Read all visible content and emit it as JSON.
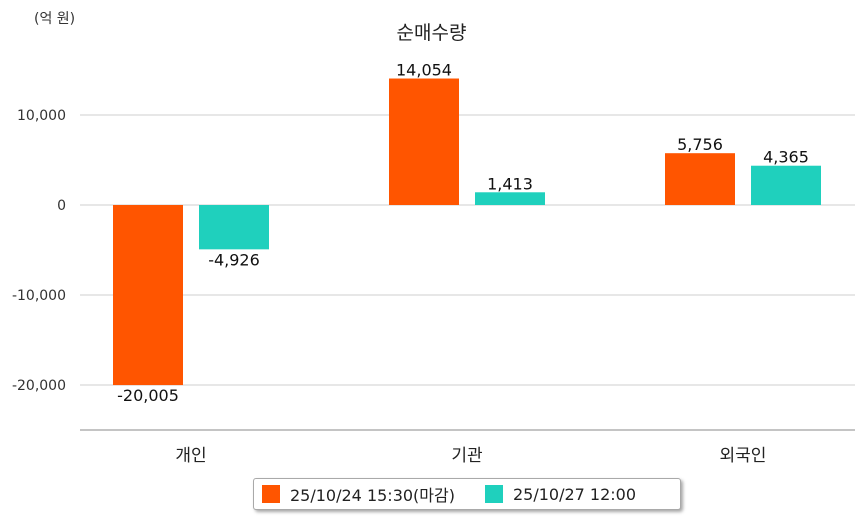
{
  "chart_data": {
    "type": "bar",
    "title": "순매수량",
    "unit_label": "(억 원)",
    "categories": [
      "개인",
      "기관",
      "외국인"
    ],
    "series": [
      {
        "name": "25/10/24 15:30(마감)",
        "color": "#ff5500",
        "values": [
          -20005,
          14054,
          5756
        ]
      },
      {
        "name": "25/10/27 12:00",
        "color": "#1fd0bd",
        "values": [
          -4926,
          1413,
          4365
        ]
      }
    ],
    "value_labels": [
      [
        "-20,005",
        "14,054",
        "5,756"
      ],
      [
        "-4,926",
        "1,413",
        "4,365"
      ]
    ],
    "y_ticks": [
      10000,
      0,
      -10000,
      -20000
    ],
    "y_tick_labels": [
      "10,000",
      "0",
      "-10,000",
      "-20,000"
    ],
    "ylim": [
      -25000,
      15000
    ],
    "grid": true,
    "legend_position": "bottom"
  }
}
